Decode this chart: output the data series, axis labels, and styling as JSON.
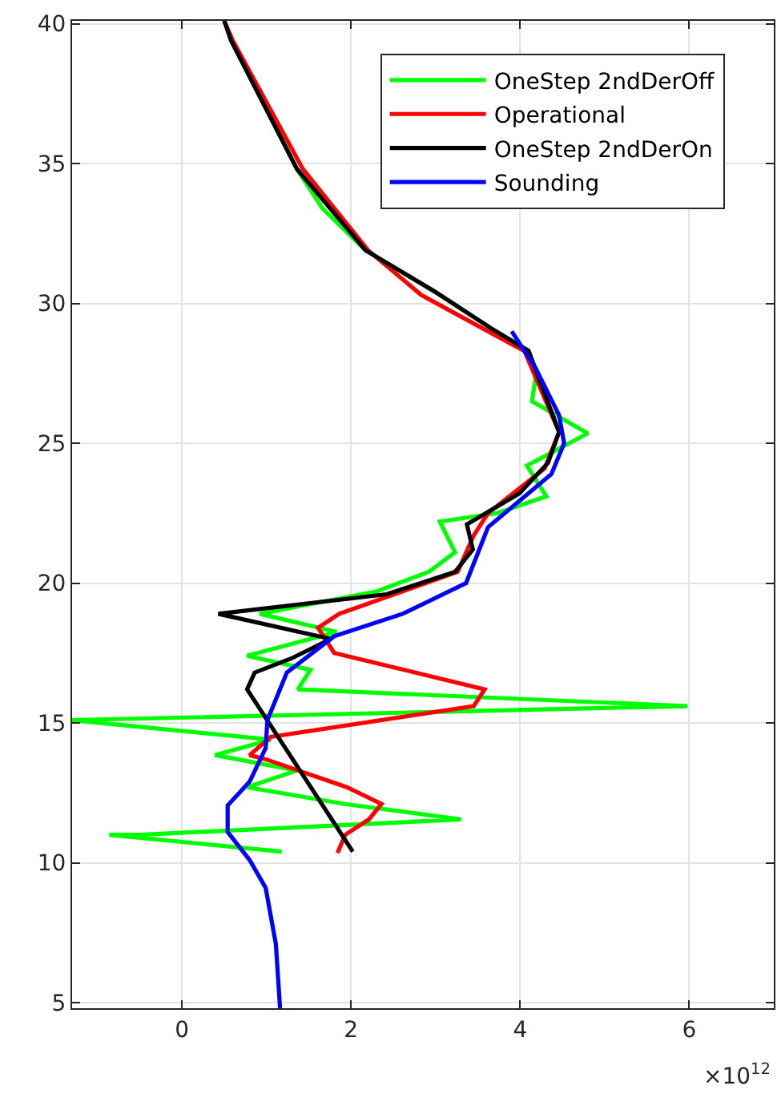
{
  "chart_data": {
    "type": "line",
    "xlim": [
      -1.3,
      7
    ],
    "ylim": [
      4.8,
      40.1
    ],
    "xticks": [
      0,
      2,
      4,
      6
    ],
    "yticks": [
      5,
      10,
      15,
      20,
      25,
      30,
      35,
      40
    ],
    "grid": true,
    "legend": "top right",
    "line_style": "solid",
    "marker": "none",
    "annotations": [
      "×10$^{12}$"
    ],
    "series": [
      {
        "name": "OneStep 2ndDerOff",
        "color": "#00ff00",
        "x": [
          0.5,
          0.58,
          1.36,
          1.66,
          2.17,
          3.0,
          3.66,
          4.1,
          4.18,
          4.14,
          4.8,
          4.08,
          4.31,
          3.73,
          3.05,
          3.23,
          2.92,
          2.3,
          0.92,
          1.83,
          0.77,
          1.52,
          1.37,
          5.98,
          -1.3,
          1.05,
          0.39,
          1.36,
          0.77,
          1.93,
          3.3,
          -0.5,
          -0.86,
          1.18
        ],
        "values": [
          40.1,
          39.4,
          34.8,
          33.4,
          31.9,
          30.4,
          29.1,
          28.3,
          27.3,
          26.5,
          25.35,
          24.2,
          23.1,
          22.5,
          22.2,
          21.1,
          20.4,
          19.7,
          18.9,
          18.25,
          17.4,
          16.9,
          16.2,
          15.6,
          15.1,
          14.4,
          13.85,
          13.3,
          12.7,
          12.1,
          11.55,
          11.0,
          11.0,
          10.4
        ]
      },
      {
        "name": "Operational",
        "color": "#ff0000",
        "x": [
          0.5,
          0.6,
          1.43,
          2.2,
          2.83,
          3.62,
          4.05,
          4.46,
          4.29,
          3.62,
          3.45,
          3.26,
          1.86,
          1.61,
          1.8,
          3.58,
          3.45,
          1.05,
          0.8,
          0.99,
          1.95,
          2.36,
          2.21,
          1.93,
          1.84
        ],
        "values": [
          40.1,
          39.4,
          34.8,
          31.9,
          30.3,
          29.0,
          28.3,
          25.4,
          24.1,
          22.5,
          21.7,
          20.4,
          18.9,
          18.4,
          17.5,
          16.2,
          15.6,
          14.5,
          13.85,
          13.7,
          12.7,
          12.1,
          11.55,
          11.0,
          10.35
        ]
      },
      {
        "name": "OneStep 2ndDerOn",
        "color": "#000000",
        "x": [
          0.5,
          0.58,
          1.36,
          2.17,
          3.0,
          3.66,
          4.1,
          4.46,
          4.33,
          3.99,
          3.37,
          3.44,
          3.23,
          2.42,
          0.43,
          1.76,
          1.29,
          0.86,
          0.77,
          2.02
        ],
        "values": [
          40.1,
          39.4,
          34.8,
          31.9,
          30.4,
          29.1,
          28.3,
          25.4,
          24.3,
          23.2,
          22.1,
          21.2,
          20.4,
          19.6,
          18.9,
          18.0,
          17.3,
          16.8,
          16.2,
          10.4
        ]
      },
      {
        "name": "Sounding",
        "color": "#0000ff",
        "x": [
          3.9,
          4.18,
          4.46,
          4.52,
          4.37,
          3.62,
          3.36,
          2.61,
          1.8,
          1.24,
          1.01,
          0.99,
          0.8,
          0.54,
          0.54,
          0.8,
          0.99,
          1.11,
          1.16
        ],
        "values": [
          29.0,
          27.7,
          26.0,
          25.0,
          23.9,
          22.0,
          20.0,
          18.9,
          18.1,
          16.8,
          15.1,
          14.1,
          12.9,
          12.05,
          11.1,
          10.1,
          9.1,
          7.1,
          4.8
        ]
      }
    ]
  }
}
